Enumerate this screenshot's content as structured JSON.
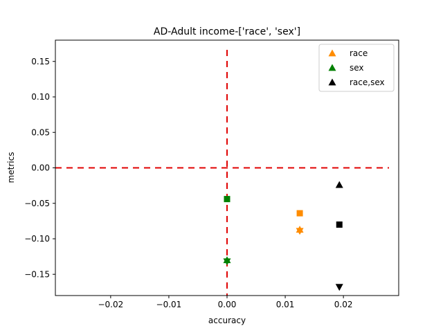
{
  "chart_data": {
    "type": "scatter",
    "title": "AD-Adult income-['race', 'sex']",
    "xlabel": "accuracy",
    "ylabel": "metrics",
    "xlim": [
      -0.0295,
      0.0295
    ],
    "ylim": [
      -0.18,
      0.18
    ],
    "x_ticks": [
      -0.02,
      -0.01,
      0.0,
      0.01,
      0.02
    ],
    "x_tick_labels": [
      "−0.02",
      "−0.01",
      "0.00",
      "0.01",
      "0.02"
    ],
    "y_ticks": [
      0.15,
      0.1,
      0.05,
      0.0,
      -0.05,
      -0.1,
      -0.15
    ],
    "y_tick_labels": [
      "0.15",
      "0.10",
      "0.05",
      "0.00",
      "−0.05",
      "−0.10",
      "−0.15"
    ],
    "grid": false,
    "legend_position": "top-right",
    "reference_lines": [
      {
        "orientation": "vertical",
        "value": 0.0,
        "color": "#e00000",
        "style": "dashed"
      },
      {
        "orientation": "horizontal",
        "value": 0.0,
        "color": "#e00000",
        "style": "dashed"
      }
    ],
    "series": [
      {
        "name": "race",
        "color": "#ff8c00",
        "points": [
          {
            "x": 0.0125,
            "y": -0.064,
            "marker": "square"
          },
          {
            "x": 0.0125,
            "y": -0.087,
            "marker": "triangle-up"
          },
          {
            "x": 0.0125,
            "y": -0.089,
            "marker": "triangle-down"
          }
        ]
      },
      {
        "name": "sex",
        "color": "#008000",
        "points": [
          {
            "x": 0.0,
            "y": -0.044,
            "marker": "square"
          },
          {
            "x": 0.0,
            "y": -0.13,
            "marker": "triangle-up"
          },
          {
            "x": 0.0,
            "y": -0.132,
            "marker": "triangle-down"
          }
        ]
      },
      {
        "name": "race,sex",
        "color": "#000000",
        "points": [
          {
            "x": 0.0193,
            "y": -0.024,
            "marker": "triangle-up"
          },
          {
            "x": 0.0193,
            "y": -0.08,
            "marker": "square"
          },
          {
            "x": 0.0193,
            "y": -0.168,
            "marker": "triangle-down"
          }
        ]
      }
    ]
  }
}
